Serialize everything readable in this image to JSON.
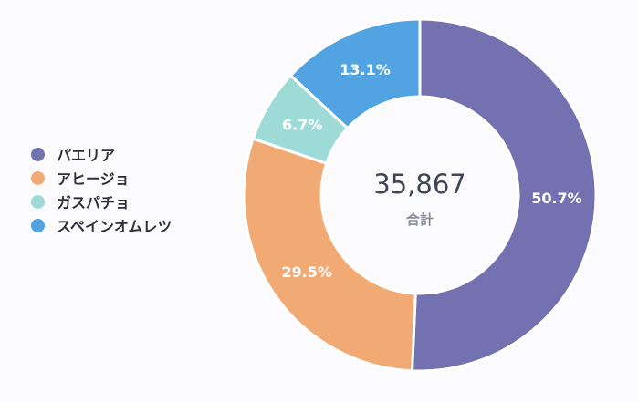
{
  "chart_data": {
    "type": "pie",
    "title": "",
    "categories": [
      "パエリア",
      "アヒージョ",
      "ガスパチョ",
      "スペインオムレツ"
    ],
    "values": [
      50.7,
      29.5,
      6.7,
      13.1
    ],
    "value_labels": [
      "50.7%",
      "29.5%",
      "6.7%",
      "13.1%"
    ],
    "colors": [
      "#7371af",
      "#f2aa74",
      "#9edbd6",
      "#52a3e2"
    ],
    "center_value": "35,867",
    "center_label": "合計",
    "legend_position": "left",
    "donut": true
  }
}
